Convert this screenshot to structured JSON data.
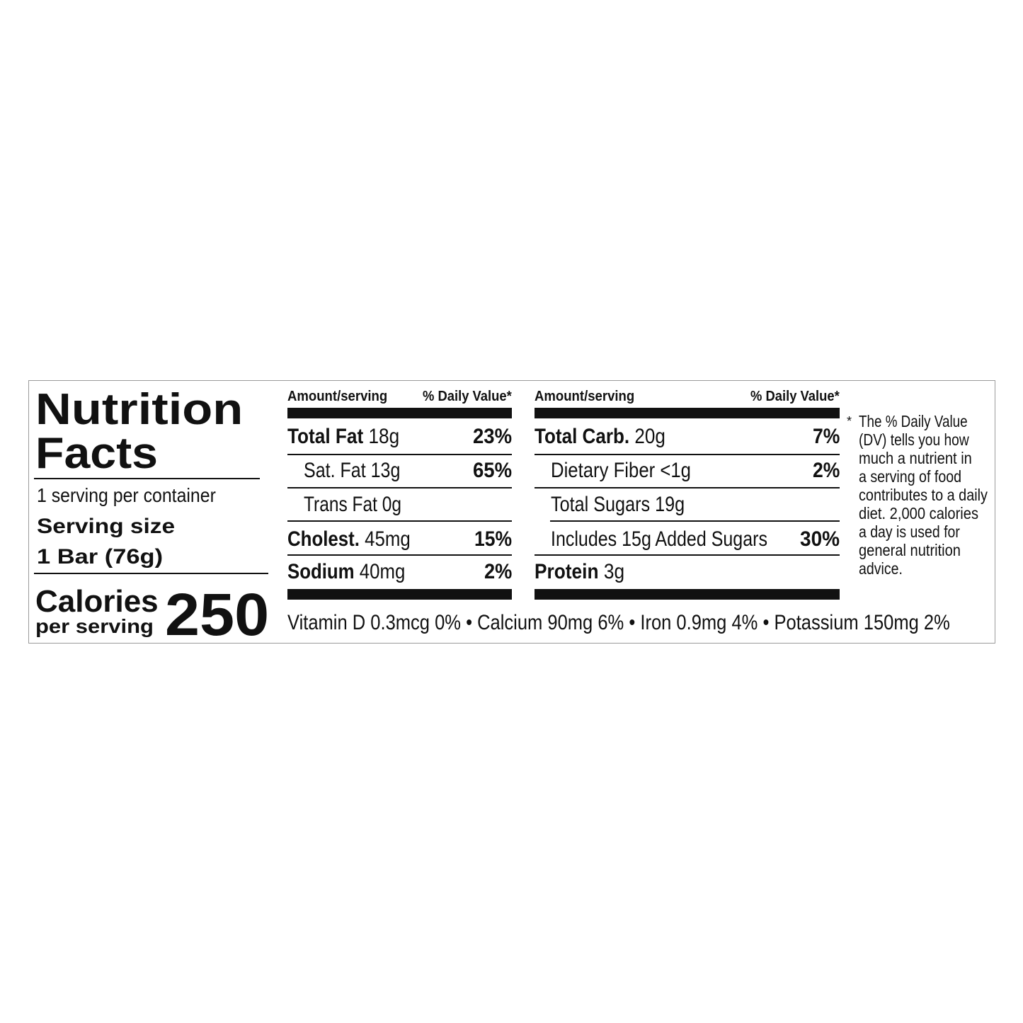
{
  "title_line1": "Nutrition",
  "title_line2": "Facts",
  "servings_per_container": "1 serving per container",
  "serving_size_label": "Serving size",
  "serving_size_value": "1 Bar (76g)",
  "calories_label": "Calories",
  "calories_sub": "per serving",
  "calories_value": "250",
  "columns": {
    "amount_header": "Amount/serving",
    "dv_header": "% Daily Value*"
  },
  "left_rows": [
    {
      "label": "Total Fat",
      "amount": " 18g",
      "dv": "23%"
    },
    {
      "label": "Sat. Fat 13g",
      "dv": "65%"
    },
    {
      "label": "Trans Fat 0g"
    },
    {
      "label": "Cholest.",
      "amount": " 45mg",
      "dv": "15%"
    },
    {
      "label": "Sodium",
      "amount": " 40mg",
      "dv": "2%"
    }
  ],
  "right_rows": [
    {
      "label": "Total Carb.",
      "amount": " 20g",
      "dv": "7%"
    },
    {
      "label": "Dietary Fiber <1g",
      "dv": "2%"
    },
    {
      "label": "Total Sugars 19g"
    },
    {
      "label": "Includes 15g Added Sugars",
      "dv": "30%"
    },
    {
      "label": "Protein",
      "amount": " 3g"
    }
  ],
  "micronutrients": "Vitamin D 0.3mcg 0% • Calcium 90mg 6% • Iron 0.9mg 4% • Potassium 150mg 2%",
  "footnote": {
    "asterisk": "*",
    "lines": [
      "The % Daily Value",
      "(DV) tells you how",
      "much a nutrient in",
      "a serving of food",
      "contributes to a daily",
      "diet. 2,000 calories",
      "a day is used for",
      "general nutrition",
      "advice."
    ]
  }
}
